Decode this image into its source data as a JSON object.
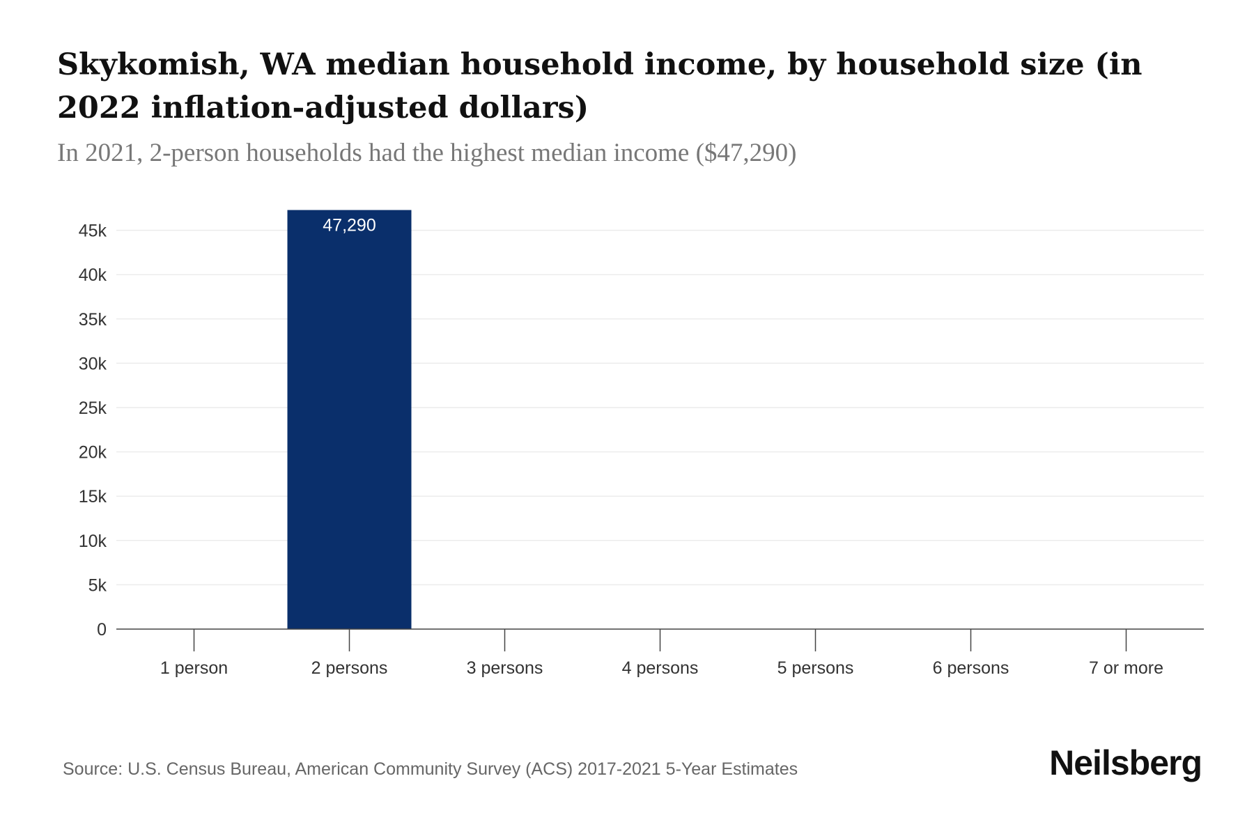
{
  "chart_data": {
    "type": "bar",
    "title": "Skykomish, WA median household income, by household size (in 2022 inflation-adjusted dollars)",
    "subtitle": "In 2021, 2-person households had the highest median income ($47,290)",
    "categories": [
      "1 person",
      "2 persons",
      "3 persons",
      "4 persons",
      "5 persons",
      "6 persons",
      "7 or more"
    ],
    "values": [
      null,
      47290,
      null,
      null,
      null,
      null,
      null
    ],
    "data_labels": [
      "",
      "47,290",
      "",
      "",
      "",
      "",
      ""
    ],
    "xlabel": "",
    "ylabel": "",
    "ylim": [
      0,
      47290
    ],
    "yticks": [
      0,
      5000,
      10000,
      15000,
      20000,
      25000,
      30000,
      35000,
      40000,
      45000
    ],
    "ytick_labels": [
      "0",
      "5k",
      "10k",
      "15k",
      "20k",
      "25k",
      "30k",
      "35k",
      "40k",
      "45k"
    ],
    "grid": true,
    "bar_color": "#0a2f6b"
  },
  "source": "Source: U.S. Census Bureau, American Community Survey (ACS) 2017-2021 5-Year Estimates",
  "brand": "Neilsberg"
}
